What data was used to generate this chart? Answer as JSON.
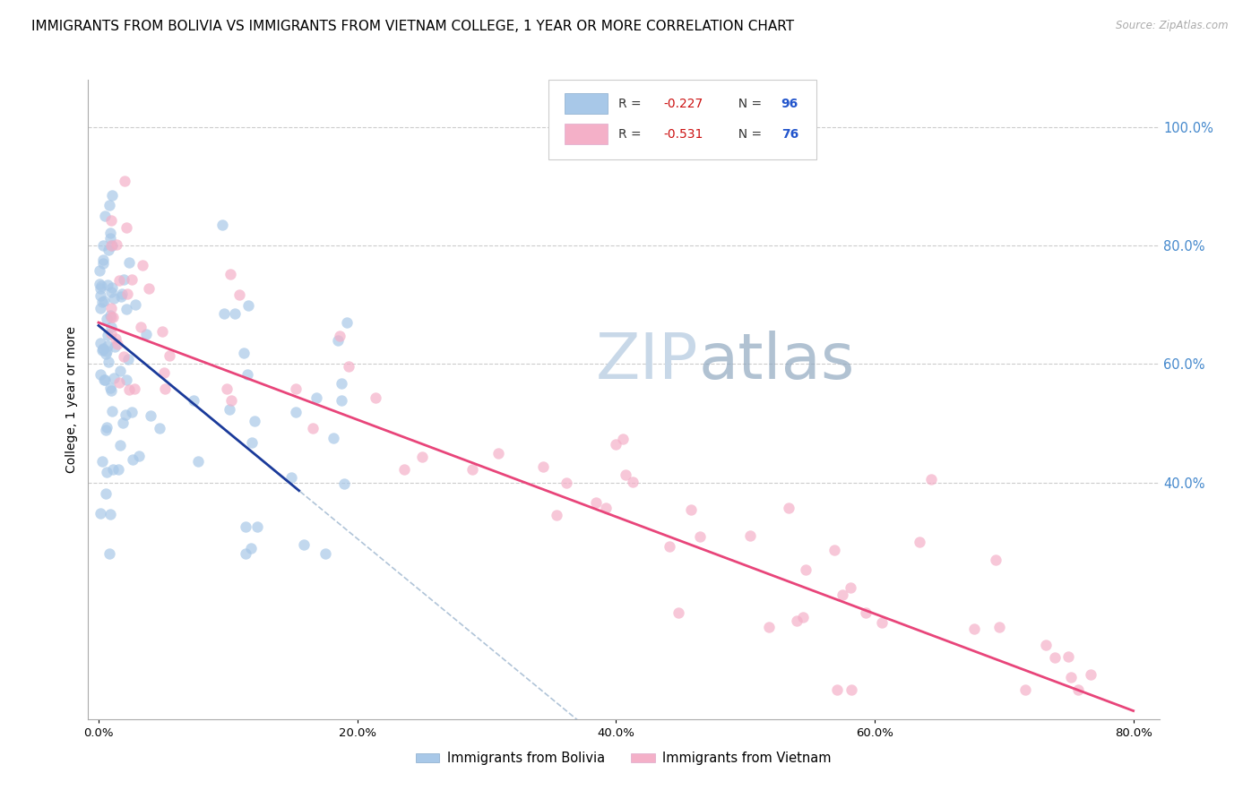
{
  "title": "IMMIGRANTS FROM BOLIVIA VS IMMIGRANTS FROM VIETNAM COLLEGE, 1 YEAR OR MORE CORRELATION CHART",
  "source": "Source: ZipAtlas.com",
  "ylabel": "College, 1 year or more",
  "r_bolivia": -0.227,
  "n_bolivia": 96,
  "r_vietnam": -0.531,
  "n_vietnam": 76,
  "bolivia_color": "#a8c8e8",
  "vietnam_color": "#f4b0c8",
  "bolivia_line_color": "#1a3a9a",
  "vietnam_line_color": "#e8457a",
  "bolivia_dash_color": "#b0c4d8",
  "right_axis_color": "#4488cc",
  "legend_r_color": "#cc1111",
  "legend_n_color": "#2255cc",
  "background_color": "#ffffff",
  "grid_color": "#cccccc",
  "watermark_zip_color": "#c8d8e8",
  "watermark_atlas_color": "#90a8c0",
  "title_fontsize": 11,
  "axis_label_fontsize": 10,
  "tick_fontsize": 9.5
}
